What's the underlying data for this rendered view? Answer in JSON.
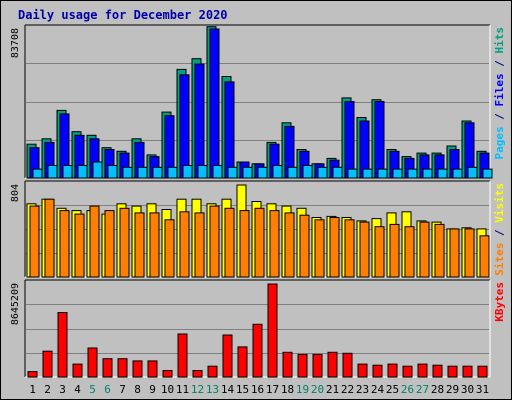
{
  "chart_data": {
    "type": "bar",
    "title": "Daily usage for December 2020",
    "categories": [
      "1",
      "2",
      "3",
      "4",
      "5",
      "6",
      "7",
      "8",
      "9",
      "10",
      "11",
      "12",
      "13",
      "14",
      "15",
      "16",
      "17",
      "18",
      "19",
      "20",
      "21",
      "22",
      "23",
      "24",
      "25",
      "26",
      "27",
      "28",
      "29",
      "30",
      "31"
    ],
    "weekend_days": [
      "5",
      "6",
      "12",
      "13",
      "19",
      "20",
      "26",
      "27"
    ],
    "grid": true,
    "panels": [
      {
        "id": "top",
        "max_label": "83708",
        "ymax": 83708,
        "side_labels": [
          {
            "text": "Pages",
            "color": "#00c0ff"
          },
          {
            "text": " / ",
            "color": "#000080"
          },
          {
            "text": "Files",
            "color": "#0000ff"
          },
          {
            "text": " / ",
            "color": "#000080"
          },
          {
            "text": "Hits",
            "color": "#00a080"
          }
        ],
        "series": [
          {
            "name": "Hits",
            "color": "#00a080",
            "values": [
              19000,
              22000,
              38000,
              26000,
              24000,
              17000,
              15000,
              22000,
              13000,
              37000,
              61000,
              67000,
              85000,
              57000,
              9000,
              8000,
              20000,
              31000,
              16000,
              8000,
              11000,
              45000,
              34000,
              44000,
              16000,
              12000,
              14000,
              14000,
              18000,
              32000,
              15000
            ]
          },
          {
            "name": "Files",
            "color": "#0000ff",
            "values": [
              17000,
              20000,
              36000,
              24000,
              22000,
              16000,
              14000,
              20000,
              12000,
              35000,
              58000,
              64000,
              83708,
              54000,
              9000,
              8000,
              19000,
              29000,
              15000,
              8000,
              10000,
              43000,
              32000,
              43000,
              15000,
              11000,
              13000,
              13000,
              16000,
              31000,
              14000
            ]
          },
          {
            "name": "Pages",
            "color": "#00c0ff",
            "values": [
              5000,
              7000,
              7000,
              7000,
              9000,
              7000,
              6000,
              6000,
              6000,
              6000,
              7000,
              7000,
              7000,
              6000,
              6000,
              6000,
              7000,
              6000,
              7000,
              6000,
              6000,
              5000,
              5000,
              5000,
              5000,
              5000,
              5000,
              5000,
              5000,
              6000,
              5000
            ]
          }
        ]
      },
      {
        "id": "mid",
        "max_label": "804",
        "ymax": 804,
        "side_labels": [
          {
            "text": "Sites",
            "color": "#ff8000"
          },
          {
            "text": " / ",
            "color": "#000080"
          },
          {
            "text": "Visits",
            "color": "#ffff00"
          }
        ],
        "series": [
          {
            "name": "Visits",
            "color": "#ffff00",
            "values": [
              640,
              680,
              600,
              580,
              580,
              550,
              640,
              620,
              640,
              590,
              680,
              680,
              640,
              680,
              804,
              660,
              640,
              620,
              600,
              520,
              530,
              520,
              490,
              510,
              560,
              570,
              490,
              480,
              420,
              430,
              420
            ]
          },
          {
            "name": "Sites",
            "color": "#ff8000",
            "values": [
              620,
              680,
              580,
              550,
              620,
              580,
              600,
              560,
              560,
              500,
              570,
              560,
              620,
              600,
              580,
              600,
              580,
              560,
              540,
              500,
              520,
              500,
              480,
              440,
              460,
              440,
              480,
              460,
              420,
              420,
              360
            ]
          }
        ]
      },
      {
        "id": "bot",
        "max_label": "8645209",
        "ymax": 8645209,
        "side_labels": [
          {
            "text": "KBytes",
            "color": "#ff0000"
          }
        ],
        "series": [
          {
            "name": "KBytes",
            "color": "#ff0000",
            "values": [
              500000,
              2400000,
              6000000,
              1200000,
              2700000,
              1700000,
              1700000,
              1500000,
              1500000,
              600000,
              4000000,
              600000,
              1000000,
              3900000,
              2800000,
              4900000,
              8645209,
              2300000,
              2100000,
              2100000,
              2300000,
              2200000,
              1200000,
              1100000,
              1200000,
              1000000,
              1200000,
              1100000,
              1000000,
              1000000,
              1000000
            ]
          }
        ]
      }
    ]
  }
}
